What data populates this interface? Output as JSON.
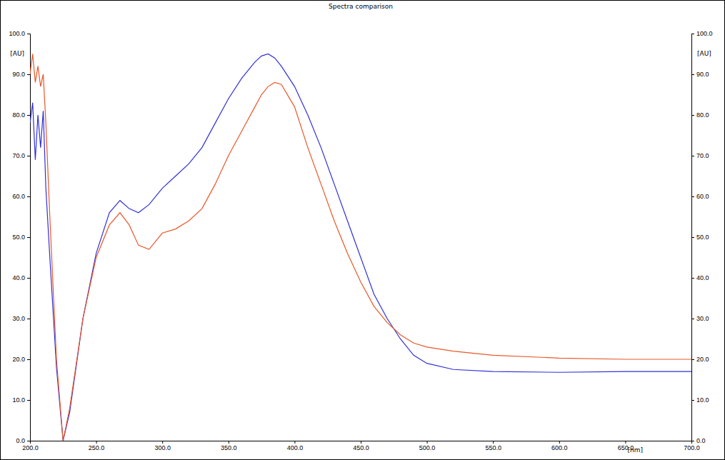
{
  "chart_data": {
    "type": "line",
    "title": "Spectra comparison",
    "x_label": "[nm]",
    "y_label": "[AU]",
    "y2_label": "[AU]",
    "x": [
      200,
      202,
      204,
      206,
      208,
      210,
      212,
      215,
      220,
      225,
      230,
      240,
      250,
      260,
      268,
      275,
      282,
      290,
      300,
      310,
      320,
      330,
      340,
      350,
      360,
      370,
      375,
      380,
      385,
      390,
      400,
      410,
      420,
      430,
      440,
      450,
      460,
      470,
      480,
      490,
      500,
      520,
      550,
      600,
      650,
      700
    ],
    "series": [
      {
        "color": "#3030d8",
        "values": [
          78,
          83,
          69,
          80,
          72,
          81,
          62,
          45,
          18,
          0,
          7,
          30,
          46,
          56,
          59,
          57,
          56,
          58,
          62,
          65,
          68,
          72,
          78,
          84,
          89,
          93,
          94.5,
          95,
          94,
          92,
          87,
          80,
          72,
          63,
          54,
          45,
          36,
          30,
          25,
          21,
          19,
          17.5,
          17,
          16.8,
          17,
          17
        ]
      },
      {
        "color": "#e8582a",
        "values": [
          90,
          95,
          88,
          92,
          87,
          90,
          78,
          55,
          20,
          0,
          8,
          30,
          45,
          53,
          56,
          53,
          48,
          47,
          51,
          52,
          54,
          57,
          63,
          70,
          76,
          82,
          85,
          87,
          88,
          87.5,
          82,
          72,
          63,
          54,
          46,
          39,
          33,
          29,
          26,
          24,
          23,
          22,
          21,
          20.3,
          20,
          20
        ]
      }
    ],
    "xlim": [
      200,
      700
    ],
    "xticks": [
      {
        "value": 200,
        "label": "200.0"
      },
      {
        "value": 250,
        "label": "250.0"
      },
      {
        "value": 300,
        "label": "300.0"
      },
      {
        "value": 350,
        "label": "350.0"
      },
      {
        "value": 400,
        "label": "400.0"
      },
      {
        "value": 450,
        "label": "450.0"
      },
      {
        "value": 500,
        "label": "500.0"
      },
      {
        "value": 550,
        "label": "550.0"
      },
      {
        "value": 600,
        "label": "600.0"
      },
      {
        "value": 650,
        "label": "650.0"
      },
      {
        "value": 700,
        "label": "700.0"
      }
    ],
    "ylim": [
      0,
      100
    ],
    "yticks": [
      {
        "value": 0,
        "label": "0.0"
      },
      {
        "value": 10,
        "label": "10.0"
      },
      {
        "value": 20,
        "label": "20.0"
      },
      {
        "value": 30,
        "label": "30.0"
      },
      {
        "value": 40,
        "label": "40.0"
      },
      {
        "value": 50,
        "label": "50.0"
      },
      {
        "value": 60,
        "label": "60.0"
      },
      {
        "value": 70,
        "label": "70.0"
      },
      {
        "value": 80,
        "label": "80.0"
      },
      {
        "value": 90,
        "label": "90.0"
      },
      {
        "value": 100,
        "label": "100.0"
      }
    ],
    "y2lim": [
      0,
      100
    ],
    "y2ticks": [
      {
        "value": 0,
        "label": "0.0"
      },
      {
        "value": 10,
        "label": "10.0"
      },
      {
        "value": 20,
        "label": "20.0"
      },
      {
        "value": 30,
        "label": "30.0"
      },
      {
        "value": 40,
        "label": "40.0"
      },
      {
        "value": 50,
        "label": "50.0"
      },
      {
        "value": 60,
        "label": "60.0"
      },
      {
        "value": 70,
        "label": "70.0"
      },
      {
        "value": 80,
        "label": "80.0"
      },
      {
        "value": 90,
        "label": "90.0"
      },
      {
        "value": 100,
        "label": "100.0"
      }
    ],
    "grid": false
  }
}
